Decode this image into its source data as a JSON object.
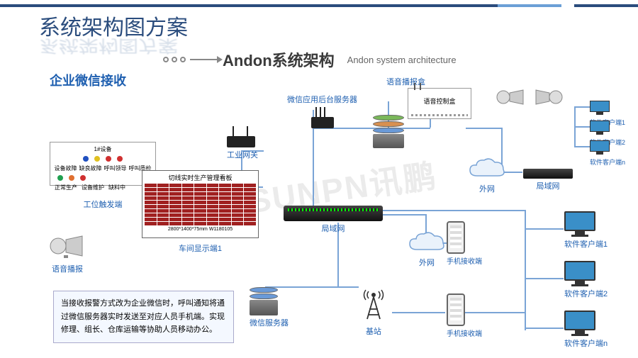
{
  "colors": {
    "top_bar_dark": "#2a4c7d",
    "top_bar_light": "#6b9fd6",
    "title": "#2a4c7d",
    "shadow": "#7a95b8",
    "subtitle": "#3a3a3a",
    "wechat": "#1e5fb0",
    "label": "#1e5fb0",
    "line": "#7aa4d6",
    "watermark": "rgba(100,100,100,0.08)",
    "led_blue": "#2050c0",
    "led_yellow": "#e0c020",
    "led_red": "#d03030",
    "led_green": "#20a050",
    "led_orange": "#e07030",
    "server_green": "#5a9a3a",
    "server_orange": "#d08030",
    "server_blue": "#4a7ac0",
    "monitor_screen": "#3a8fc8"
  },
  "header": {
    "title": "系统架构图方案",
    "sub_title": "Andon系统架构",
    "sub_title_en": "Andon system architecture",
    "wechat_title": "企业微信接收"
  },
  "watermark": "SUNPN讯鹏",
  "nodes": {
    "voice_box": "语音播报盒",
    "voice_ctrl": "语音控制盒",
    "app_server": "微信应用后台服务器",
    "gateway": "工业网关",
    "lan": "局域网",
    "wan": "外网",
    "station": "工位触发端",
    "station_hdr": "1#设备",
    "station_row1": [
      "设备故障",
      "缺良故障",
      "呼叫领导",
      "呼叫质检"
    ],
    "station_row2": [
      "正常生产",
      "设备维护",
      "缺料中"
    ],
    "display": "车间显示端1",
    "display_hdr": "切线实时生产管理看板",
    "display_ftr": "2800*1400*75mm W1180105",
    "voice_play": "语音播报",
    "wechat_server": "微信服务器",
    "base_station": "基站",
    "phone": "手机接收端",
    "client1": "软件客户端1",
    "client2": "软件客户端2",
    "clientn": "软件客户端n",
    "small_client1": "软件客户端1",
    "small_client2": "软件客户端2",
    "small_clientn": "软件客户端n"
  },
  "desc": "当接收报警方式改为企业微信时，呼叫通知将通过微信服务器实时发送至对应人员手机端。实现修理、组长、仓库运输等协助人员移动办公。"
}
